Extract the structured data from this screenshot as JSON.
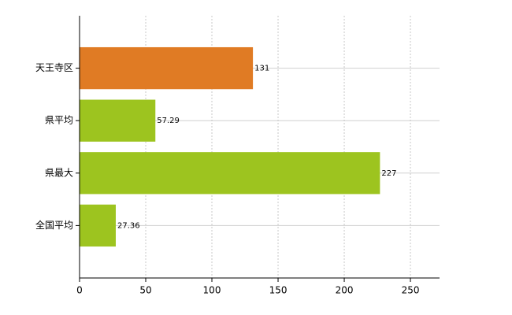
{
  "chart_data": {
    "type": "bar",
    "orientation": "horizontal",
    "categories": [
      "天王寺区",
      "県平均",
      "県最大",
      "全国平均"
    ],
    "values": [
      131,
      57.29,
      227,
      27.36
    ],
    "colors": [
      "#e07b24",
      "#9dc41f",
      "#9dc41f",
      "#9dc41f"
    ],
    "xlim": [
      0,
      272
    ],
    "xticks": [
      0,
      50,
      100,
      150,
      200,
      250
    ],
    "grid": true
  }
}
